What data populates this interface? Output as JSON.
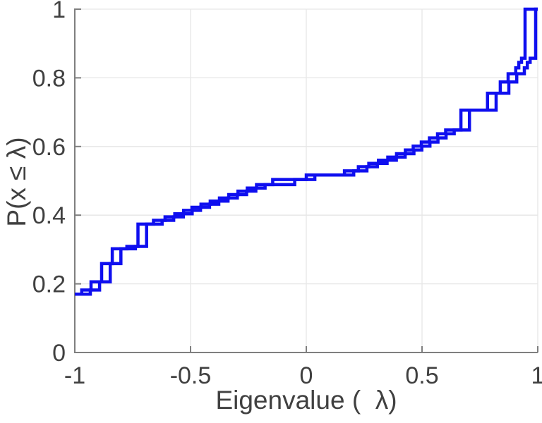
{
  "figure": {
    "background": "#ffffff",
    "title": ""
  },
  "chart_data": {
    "type": "line",
    "subtype": "ecdf-step",
    "title": "",
    "xlabel": "Eigenvalue (  λ)",
    "ylabel": "P(x ≤ λ)",
    "xlim": [
      -1,
      1
    ],
    "ylim": [
      0,
      1
    ],
    "xticks": [
      -1,
      -0.5,
      0,
      0.5,
      1
    ],
    "xtick_labels": [
      "-1",
      "-0.5",
      "0",
      "0.5",
      "1"
    ],
    "yticks": [
      0,
      0.2,
      0.4,
      0.6,
      0.8,
      1
    ],
    "ytick_labels": [
      "0",
      "0.2",
      "0.4",
      "0.6",
      "0.8",
      "1"
    ],
    "grid": true,
    "legend": "none",
    "line_color": "#0f0fef",
    "line_width": 4.5,
    "axis_color": "#7f7f7f",
    "grid_color": "#e6e6e6",
    "tick_label_color": "#404040",
    "series": [
      {
        "name": "ecdf-1",
        "step": true,
        "points": [
          [
            -1.0,
            0.17
          ],
          [
            -0.97,
            0.182
          ],
          [
            -0.93,
            0.206
          ],
          [
            -0.884,
            0.259
          ],
          [
            -0.838,
            0.302
          ],
          [
            -0.775,
            0.309
          ],
          [
            -0.727,
            0.374
          ],
          [
            -0.66,
            0.385
          ],
          [
            -0.61,
            0.395
          ],
          [
            -0.568,
            0.404
          ],
          [
            -0.53,
            0.414
          ],
          [
            -0.494,
            0.423
          ],
          [
            -0.455,
            0.432
          ],
          [
            -0.415,
            0.441
          ],
          [
            -0.375,
            0.45
          ],
          [
            -0.335,
            0.46
          ],
          [
            -0.295,
            0.47
          ],
          [
            -0.255,
            0.479
          ],
          [
            -0.215,
            0.489
          ],
          [
            -0.145,
            0.504
          ],
          [
            0.0,
            0.517
          ],
          [
            0.165,
            0.529
          ],
          [
            0.225,
            0.541
          ],
          [
            0.27,
            0.551
          ],
          [
            0.312,
            0.56
          ],
          [
            0.352,
            0.569
          ],
          [
            0.39,
            0.579
          ],
          [
            0.428,
            0.59
          ],
          [
            0.462,
            0.601
          ],
          [
            0.497,
            0.613
          ],
          [
            0.532,
            0.625
          ],
          [
            0.567,
            0.637
          ],
          [
            0.602,
            0.648
          ],
          [
            0.668,
            0.706
          ],
          [
            0.783,
            0.755
          ],
          [
            0.838,
            0.788
          ],
          [
            0.872,
            0.812
          ],
          [
            0.905,
            0.829
          ],
          [
            0.918,
            0.845
          ],
          [
            0.93,
            0.857
          ],
          [
            0.945,
            1.0
          ],
          [
            1.0,
            1.0
          ]
        ]
      },
      {
        "name": "ecdf-2",
        "step": true,
        "points": [
          [
            -1.0,
            0.17
          ],
          [
            -0.933,
            0.182
          ],
          [
            -0.893,
            0.206
          ],
          [
            -0.847,
            0.259
          ],
          [
            -0.801,
            0.302
          ],
          [
            -0.738,
            0.309
          ],
          [
            -0.69,
            0.374
          ],
          [
            -0.623,
            0.385
          ],
          [
            -0.573,
            0.395
          ],
          [
            -0.531,
            0.404
          ],
          [
            -0.493,
            0.414
          ],
          [
            -0.457,
            0.423
          ],
          [
            -0.418,
            0.432
          ],
          [
            -0.378,
            0.441
          ],
          [
            -0.338,
            0.45
          ],
          [
            -0.298,
            0.46
          ],
          [
            -0.258,
            0.47
          ],
          [
            -0.218,
            0.479
          ],
          [
            -0.178,
            0.489
          ],
          [
            -0.05,
            0.504
          ],
          [
            0.037,
            0.517
          ],
          [
            0.205,
            0.529
          ],
          [
            0.262,
            0.541
          ],
          [
            0.307,
            0.551
          ],
          [
            0.349,
            0.56
          ],
          [
            0.389,
            0.569
          ],
          [
            0.427,
            0.579
          ],
          [
            0.465,
            0.59
          ],
          [
            0.499,
            0.601
          ],
          [
            0.534,
            0.613
          ],
          [
            0.569,
            0.625
          ],
          [
            0.604,
            0.637
          ],
          [
            0.639,
            0.648
          ],
          [
            0.705,
            0.706
          ],
          [
            0.82,
            0.755
          ],
          [
            0.875,
            0.788
          ],
          [
            0.909,
            0.812
          ],
          [
            0.942,
            0.829
          ],
          [
            0.955,
            0.845
          ],
          [
            0.967,
            0.857
          ],
          [
            0.991,
            1.0
          ],
          [
            1.0,
            1.0
          ]
        ]
      }
    ]
  }
}
